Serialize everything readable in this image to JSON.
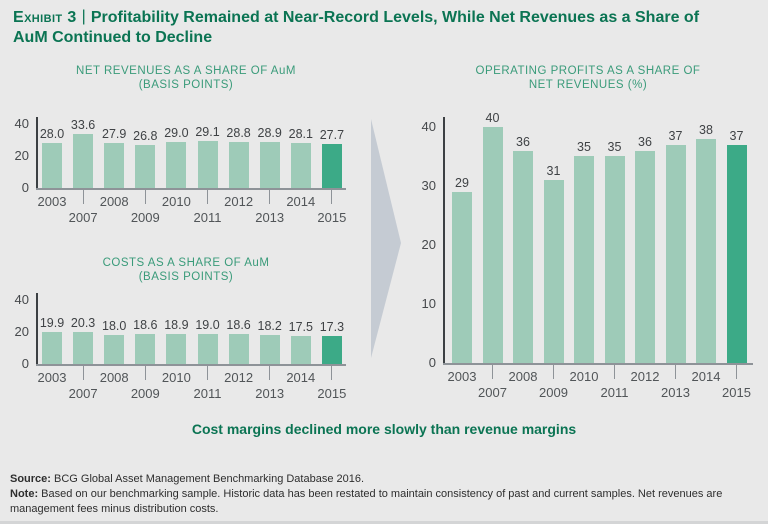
{
  "header": {
    "exhibit_label": "Exhibit 3",
    "separator": "|",
    "title_line1": "Profitability Remained at Near-Record Levels, While Net Revenues as a Share of",
    "title_line2": "AuM Continued to Decline"
  },
  "chart_data": [
    {
      "type": "bar",
      "title": "NET REVENUES AS A SHARE OF AuM (BASIS POINTS)",
      "title_lines": [
        "NET REVENUES AS A SHARE OF AuM",
        "(BASIS POINTS)"
      ],
      "categories": [
        "2003",
        "2007",
        "2008",
        "2009",
        "2010",
        "2011",
        "2012",
        "2013",
        "2014",
        "2015"
      ],
      "values": [
        28.0,
        33.6,
        27.9,
        26.8,
        29.0,
        29.1,
        28.8,
        28.9,
        28.1,
        27.7
      ],
      "labels": [
        "28.0",
        "33.6",
        "27.9",
        "26.8",
        "29.0",
        "29.1",
        "28.8",
        "28.9",
        "28.1",
        "27.7"
      ],
      "unit": "basis points",
      "yticks": [
        0,
        20,
        40
      ],
      "ylim": [
        0,
        40
      ],
      "highlight_index": 9,
      "legend": "none",
      "grid": false
    },
    {
      "type": "bar",
      "title": "COSTS AS A SHARE OF AuM (BASIS POINTS)",
      "title_lines": [
        "COSTS AS A SHARE OF AuM",
        "(BASIS POINTS)"
      ],
      "categories": [
        "2003",
        "2007",
        "2008",
        "2009",
        "2010",
        "2011",
        "2012",
        "2013",
        "2014",
        "2015"
      ],
      "values": [
        19.9,
        20.3,
        18.0,
        18.6,
        18.9,
        19.0,
        18.6,
        18.2,
        17.5,
        17.3
      ],
      "labels": [
        "19.9",
        "20.3",
        "18.0",
        "18.6",
        "18.9",
        "19.0",
        "18.6",
        "18.2",
        "17.5",
        "17.3"
      ],
      "unit": "basis points",
      "yticks": [
        0,
        20,
        40
      ],
      "ylim": [
        0,
        40
      ],
      "highlight_index": 9,
      "legend": "none",
      "grid": false
    },
    {
      "type": "bar",
      "title": "OPERATING PROFITS AS A SHARE OF NET REVENUES (%)",
      "title_lines": [
        "OPERATING PROFITS AS A SHARE OF",
        "NET REVENUES (%)"
      ],
      "categories": [
        "2003",
        "2007",
        "2008",
        "2009",
        "2010",
        "2011",
        "2012",
        "2013",
        "2014",
        "2015"
      ],
      "values": [
        29,
        40,
        36,
        31,
        35,
        35,
        36,
        37,
        38,
        37
      ],
      "labels": [
        "29",
        "40",
        "36",
        "31",
        "35",
        "35",
        "36",
        "37",
        "38",
        "37"
      ],
      "unit": "%",
      "yticks": [
        0,
        10,
        20,
        30,
        40
      ],
      "ylim": [
        0,
        40
      ],
      "highlight_index": 9,
      "legend": "none",
      "grid": false
    }
  ],
  "takeaway": "Cost margins declined more slowly than revenue margins",
  "footnotes": {
    "source_label": "Source:",
    "source_text": " BCG Global Asset Management Benchmarking Database 2016.",
    "note_label": "Note:",
    "note_text": " Based on our benchmarking sample. Historic data has been restated to maintain consistency of past and current samples. Net revenues are management fees minus distribution costs."
  },
  "colors": {
    "background": "#e9e9e9",
    "bar": "#9ecbb8",
    "bar_highlight": "#3caa87",
    "title_green": "#0b7453",
    "chart_title_green": "#3a9b7a",
    "arrow": "#c5cbd3",
    "axis": "#3c4043",
    "axis_light": "#8e9398",
    "value_label_text": "#3f4245",
    "footnote_text": "#2e2e2e"
  }
}
